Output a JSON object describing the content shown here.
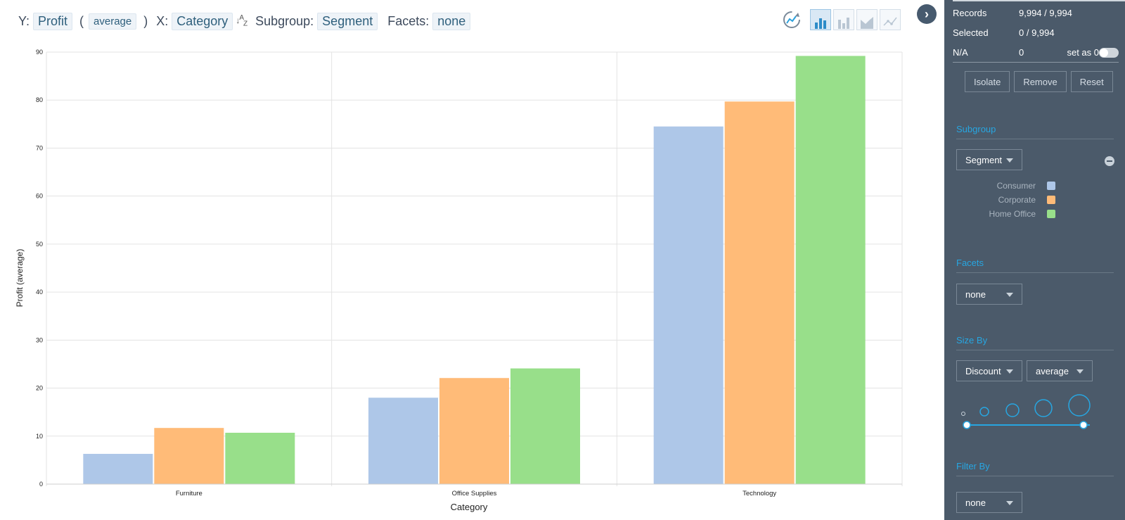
{
  "toolbar": {
    "y_label": "Y:",
    "y_field": "Profit",
    "y_aggregate": "average",
    "x_label": "X:",
    "x_field": "Category",
    "sort_icon": "sort-az-icon",
    "subgroup_label": "Subgroup:",
    "subgroup_field": "Segment",
    "facets_label": "Facets:",
    "facets_field": "none"
  },
  "chart_types": [
    "bar-chart-icon",
    "column-chart-icon",
    "area-chart-icon",
    "line-chart-icon"
  ],
  "chart_data": {
    "type": "bar",
    "categories": [
      "Furniture",
      "Office Supplies",
      "Technology"
    ],
    "series": [
      {
        "name": "Consumer",
        "color": "#aec7e8",
        "values": [
          6.3,
          18.0,
          74.5
        ]
      },
      {
        "name": "Corporate",
        "color": "#ffbb78",
        "values": [
          11.7,
          22.1,
          79.7
        ]
      },
      {
        "name": "Home Office",
        "color": "#98df8a",
        "values": [
          10.7,
          24.1,
          89.2
        ]
      }
    ],
    "xlabel": "Category",
    "ylabel": "Profit (average)",
    "ylim": [
      0,
      90
    ],
    "yticks": [
      0,
      10,
      20,
      30,
      40,
      50,
      60,
      70,
      80,
      90
    ],
    "grid": true
  },
  "sidebar": {
    "records_label": "Records",
    "records_value": "9,994 / 9,994",
    "selected_label": "Selected",
    "selected_value": "0 / 9,994",
    "na_label": "N/A",
    "na_value": "0",
    "set_as_zero_label": "set as 0",
    "isolate_label": "Isolate",
    "remove_label": "Remove",
    "reset_label": "Reset",
    "subgroup_title": "Subgroup",
    "subgroup_value": "Segment",
    "legend": [
      {
        "name": "Consumer",
        "color": "#aec7e8"
      },
      {
        "name": "Corporate",
        "color": "#ffbb78"
      },
      {
        "name": "Home Office",
        "color": "#98df8a"
      }
    ],
    "facets_title": "Facets",
    "facets_value": "none",
    "sizeby_title": "Size By",
    "sizeby_field": "Discount",
    "sizeby_aggregate": "average",
    "filterby_title": "Filter By",
    "filterby_value": "none"
  }
}
